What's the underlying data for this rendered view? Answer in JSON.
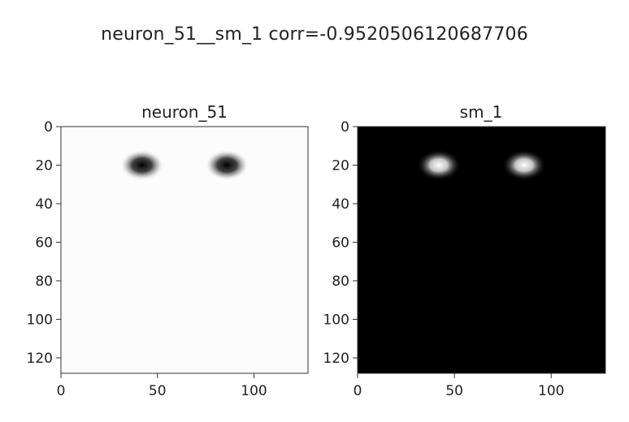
{
  "figure": {
    "suptitle": "neuron_51__sm_1 corr=-0.9520506120687706"
  },
  "chart_data": [
    {
      "type": "heatmap",
      "title": "neuron_51",
      "colormap": "gray_r",
      "xlim": [
        0,
        128
      ],
      "ylim": [
        128,
        0
      ],
      "x_ticks": [
        0,
        50,
        100
      ],
      "y_ticks": [
        0,
        20,
        40,
        60,
        80,
        100,
        120
      ],
      "y_inverted": true,
      "grid": false,
      "blobs": [
        {
          "x": 42,
          "y": 20,
          "value": 1.0
        },
        {
          "x": 86,
          "y": 20,
          "value": 1.0
        }
      ]
    },
    {
      "type": "heatmap",
      "title": "sm_1",
      "colormap": "gray",
      "xlim": [
        0,
        128
      ],
      "ylim": [
        128,
        0
      ],
      "x_ticks": [
        0,
        50,
        100
      ],
      "y_ticks": [
        0,
        20,
        40,
        60,
        80,
        100,
        120
      ],
      "y_inverted": true,
      "grid": false,
      "blobs": [
        {
          "x": 42,
          "y": 20,
          "value": 1.0
        },
        {
          "x": 86,
          "y": 20,
          "value": 1.0
        }
      ]
    }
  ]
}
